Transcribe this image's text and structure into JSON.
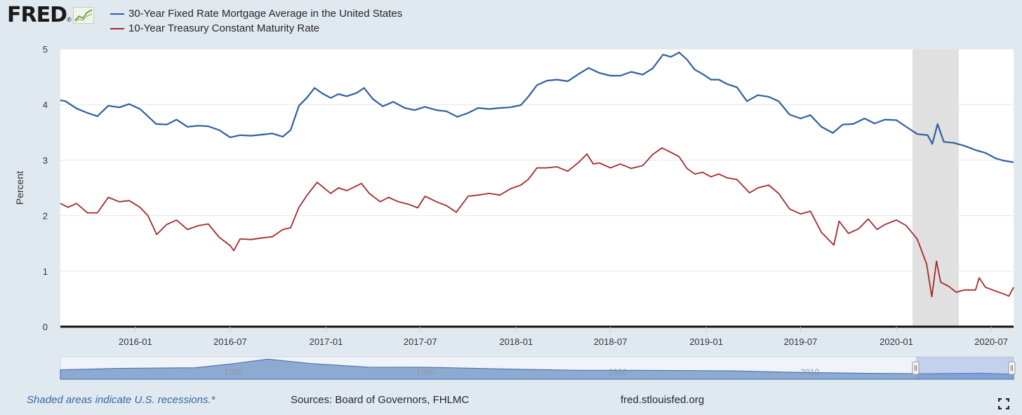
{
  "brand": {
    "name": "FRED",
    "reg": "®"
  },
  "footer": {
    "recession_note": "Shaded areas indicate U.S. recessions.*",
    "sources": "Sources: Board of Governors, FHLMC",
    "site": "fred.stlouisfed.org"
  },
  "colors": {
    "mortgage": "#2f5f9e",
    "treasury": "#a52a2a",
    "recession": "#e0e0e0",
    "navigator": "#7b9ccc"
  },
  "icons": {
    "logo_graph": "line-graph-icon",
    "fullscreen": "fullscreen-icon"
  },
  "chart_data": {
    "type": "line",
    "title": "",
    "xlabel": "",
    "ylabel": "Percent",
    "ylim": [
      0,
      5
    ],
    "yticks": [
      "0",
      "1",
      "2",
      "3",
      "4",
      "5"
    ],
    "xticks": [
      "2016-01",
      "2016-07",
      "2017-01",
      "2017-07",
      "2018-01",
      "2018-07",
      "2019-01",
      "2019-07",
      "2020-01",
      "2020-07"
    ],
    "xrange": [
      "2015-08-10",
      "2020-08-13"
    ],
    "grid": true,
    "legend": "top-left",
    "recessions": [
      {
        "start": "2020-02-01",
        "end": "2020-04-30"
      }
    ],
    "navigator_ticks": [
      "1980",
      "1990",
      "2000",
      "2010"
    ],
    "series": [
      {
        "name": "30-Year Fixed Rate Mortgage Average in the United States",
        "x": [
          "2015-08-10",
          "2015-08-20",
          "2015-09-10",
          "2015-10-01",
          "2015-10-20",
          "2015-11-10",
          "2015-12-01",
          "2015-12-20",
          "2016-01-10",
          "2016-01-25",
          "2016-02-10",
          "2016-03-01",
          "2016-03-20",
          "2016-04-10",
          "2016-05-01",
          "2016-05-20",
          "2016-06-10",
          "2016-07-01",
          "2016-07-20",
          "2016-08-10",
          "2016-09-01",
          "2016-09-20",
          "2016-10-10",
          "2016-10-25",
          "2016-11-10",
          "2016-11-25",
          "2016-12-10",
          "2016-12-25",
          "2017-01-10",
          "2017-01-25",
          "2017-02-10",
          "2017-03-01",
          "2017-03-15",
          "2017-04-01",
          "2017-04-20",
          "2017-05-10",
          "2017-06-01",
          "2017-06-20",
          "2017-07-10",
          "2017-08-01",
          "2017-08-20",
          "2017-09-10",
          "2017-10-01",
          "2017-10-20",
          "2017-11-10",
          "2017-12-01",
          "2017-12-20",
          "2018-01-10",
          "2018-01-25",
          "2018-02-10",
          "2018-03-01",
          "2018-03-20",
          "2018-04-10",
          "2018-05-01",
          "2018-05-20",
          "2018-06-10",
          "2018-07-01",
          "2018-07-20",
          "2018-08-10",
          "2018-09-01",
          "2018-09-20",
          "2018-10-10",
          "2018-10-25",
          "2018-11-10",
          "2018-11-25",
          "2018-12-10",
          "2018-12-25",
          "2019-01-10",
          "2019-01-25",
          "2019-02-10",
          "2019-03-01",
          "2019-03-20",
          "2019-04-10",
          "2019-05-01",
          "2019-05-20",
          "2019-06-10",
          "2019-07-01",
          "2019-07-20",
          "2019-08-10",
          "2019-09-01",
          "2019-09-20",
          "2019-10-10",
          "2019-11-01",
          "2019-11-20",
          "2019-12-10",
          "2020-01-01",
          "2020-01-20",
          "2020-02-10",
          "2020-03-01",
          "2020-03-10",
          "2020-03-20",
          "2020-04-01",
          "2020-04-20",
          "2020-05-10",
          "2020-06-01",
          "2020-06-20",
          "2020-07-10",
          "2020-07-25",
          "2020-08-13"
        ],
        "values": [
          4.08,
          4.06,
          3.93,
          3.85,
          3.79,
          3.98,
          3.95,
          4.01,
          3.92,
          3.79,
          3.65,
          3.64,
          3.73,
          3.6,
          3.62,
          3.61,
          3.54,
          3.41,
          3.45,
          3.44,
          3.46,
          3.48,
          3.42,
          3.54,
          3.98,
          4.12,
          4.3,
          4.2,
          4.12,
          4.19,
          4.15,
          4.21,
          4.3,
          4.1,
          3.97,
          4.05,
          3.94,
          3.9,
          3.96,
          3.9,
          3.88,
          3.78,
          3.85,
          3.94,
          3.92,
          3.94,
          3.95,
          3.99,
          4.15,
          4.35,
          4.43,
          4.45,
          4.42,
          4.55,
          4.66,
          4.57,
          4.52,
          4.52,
          4.59,
          4.54,
          4.65,
          4.9,
          4.86,
          4.94,
          4.81,
          4.63,
          4.55,
          4.45,
          4.45,
          4.37,
          4.31,
          4.06,
          4.17,
          4.14,
          4.06,
          3.82,
          3.75,
          3.81,
          3.6,
          3.49,
          3.64,
          3.65,
          3.75,
          3.66,
          3.73,
          3.72,
          3.6,
          3.47,
          3.45,
          3.29,
          3.65,
          3.33,
          3.31,
          3.26,
          3.18,
          3.13,
          3.03,
          2.99,
          2.96
        ]
      },
      {
        "name": "10-Year Treasury Constant Maturity Rate",
        "x": [
          "2015-08-10",
          "2015-08-25",
          "2015-09-10",
          "2015-10-01",
          "2015-10-20",
          "2015-11-10",
          "2015-12-01",
          "2015-12-20",
          "2016-01-10",
          "2016-01-25",
          "2016-02-11",
          "2016-03-01",
          "2016-03-20",
          "2016-04-10",
          "2016-05-01",
          "2016-05-20",
          "2016-06-10",
          "2016-07-01",
          "2016-07-08",
          "2016-07-20",
          "2016-08-10",
          "2016-09-01",
          "2016-09-20",
          "2016-10-10",
          "2016-10-25",
          "2016-11-10",
          "2016-11-25",
          "2016-12-15",
          "2017-01-10",
          "2017-01-25",
          "2017-02-10",
          "2017-03-10",
          "2017-03-25",
          "2017-04-15",
          "2017-05-01",
          "2017-05-20",
          "2017-06-10",
          "2017-06-26",
          "2017-07-10",
          "2017-08-01",
          "2017-08-20",
          "2017-09-08",
          "2017-10-01",
          "2017-10-20",
          "2017-11-10",
          "2017-12-01",
          "2017-12-20",
          "2018-01-10",
          "2018-01-25",
          "2018-02-10",
          "2018-03-01",
          "2018-03-20",
          "2018-04-10",
          "2018-05-01",
          "2018-05-17",
          "2018-05-29",
          "2018-06-10",
          "2018-07-01",
          "2018-07-20",
          "2018-08-10",
          "2018-09-01",
          "2018-09-20",
          "2018-10-08",
          "2018-10-25",
          "2018-11-10",
          "2018-11-25",
          "2018-12-10",
          "2018-12-25",
          "2019-01-10",
          "2019-01-25",
          "2019-02-10",
          "2019-03-01",
          "2019-03-25",
          "2019-04-10",
          "2019-05-01",
          "2019-05-20",
          "2019-06-10",
          "2019-07-01",
          "2019-07-20",
          "2019-08-10",
          "2019-09-03",
          "2019-09-13",
          "2019-10-01",
          "2019-10-20",
          "2019-11-08",
          "2019-11-25",
          "2019-12-10",
          "2020-01-01",
          "2020-01-20",
          "2020-02-10",
          "2020-02-28",
          "2020-03-09",
          "2020-03-18",
          "2020-03-26",
          "2020-04-10",
          "2020-04-25",
          "2020-05-10",
          "2020-06-01",
          "2020-06-08",
          "2020-06-20",
          "2020-07-10",
          "2020-07-25",
          "2020-08-04",
          "2020-08-13"
        ],
        "values": [
          2.22,
          2.15,
          2.22,
          2.05,
          2.05,
          2.33,
          2.25,
          2.27,
          2.15,
          2.0,
          1.66,
          1.84,
          1.92,
          1.75,
          1.82,
          1.85,
          1.61,
          1.46,
          1.37,
          1.58,
          1.57,
          1.6,
          1.62,
          1.75,
          1.78,
          2.15,
          2.36,
          2.6,
          2.4,
          2.5,
          2.45,
          2.58,
          2.4,
          2.25,
          2.33,
          2.25,
          2.2,
          2.14,
          2.35,
          2.25,
          2.18,
          2.06,
          2.35,
          2.37,
          2.4,
          2.37,
          2.48,
          2.55,
          2.66,
          2.86,
          2.86,
          2.88,
          2.8,
          2.96,
          3.11,
          2.93,
          2.95,
          2.86,
          2.93,
          2.85,
          2.9,
          3.1,
          3.22,
          3.14,
          3.06,
          2.85,
          2.75,
          2.78,
          2.7,
          2.75,
          2.68,
          2.65,
          2.41,
          2.5,
          2.55,
          2.4,
          2.12,
          2.03,
          2.08,
          1.7,
          1.47,
          1.9,
          1.68,
          1.76,
          1.94,
          1.75,
          1.84,
          1.92,
          1.82,
          1.58,
          1.13,
          0.54,
          1.18,
          0.8,
          0.73,
          0.62,
          0.66,
          0.66,
          0.88,
          0.71,
          0.64,
          0.59,
          0.55,
          0.71
        ]
      }
    ]
  }
}
